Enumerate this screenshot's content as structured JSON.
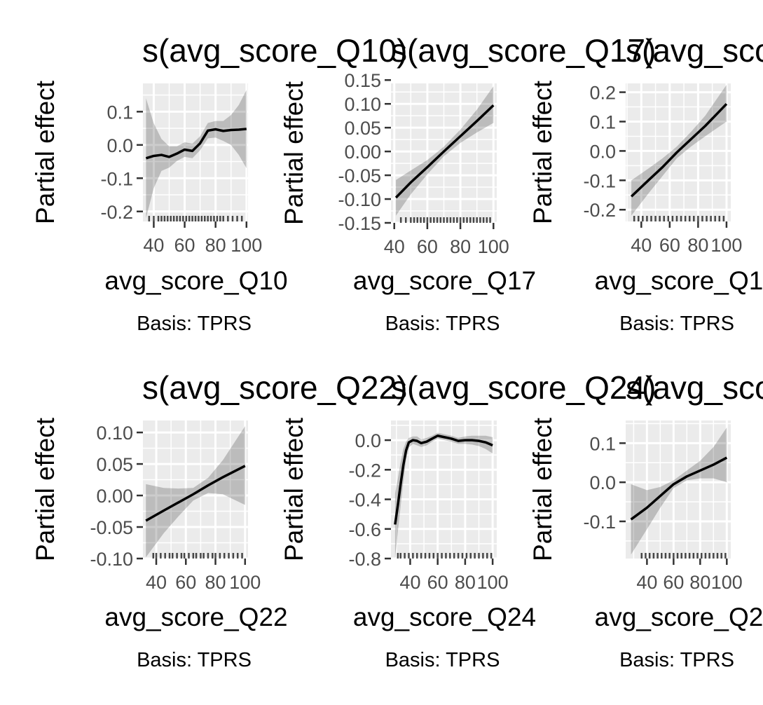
{
  "chart_data": [
    {
      "type": "line",
      "title": "s(avg_score_Q10)",
      "xlabel": "avg_score_Q10",
      "ylabel": "Partial effect",
      "caption": "Basis: TPRS",
      "xlim": [
        33,
        101
      ],
      "ylim": [
        -0.23,
        0.185
      ],
      "x_ticks": [
        40,
        60,
        80,
        100
      ],
      "x_tick_labels": [
        "40",
        "60",
        "80",
        "100"
      ],
      "y_ticks": [
        -0.2,
        -0.1,
        0.0,
        0.1
      ],
      "y_tick_labels": [
        "-0.2",
        "-0.1",
        "0.0",
        "0.1"
      ],
      "grid": true,
      "series": [
        {
          "x": [
            35,
            40,
            45,
            50,
            55,
            60,
            65,
            70,
            75,
            80,
            85,
            90,
            95,
            100
          ],
          "y": [
            -0.04,
            -0.033,
            -0.03,
            -0.036,
            -0.026,
            -0.014,
            -0.018,
            0.005,
            0.043,
            0.047,
            0.042,
            0.045,
            0.046,
            0.048
          ],
          "lower": [
            -0.22,
            -0.13,
            -0.078,
            -0.068,
            -0.048,
            -0.036,
            -0.04,
            -0.016,
            0.02,
            0.022,
            0.012,
            0.0,
            -0.03,
            -0.07
          ],
          "upper": [
            0.14,
            0.065,
            0.018,
            -0.004,
            -0.004,
            0.008,
            0.004,
            0.026,
            0.066,
            0.072,
            0.072,
            0.09,
            0.12,
            0.165
          ]
        }
      ],
      "rug": [
        37,
        40,
        43,
        45,
        47,
        49,
        51,
        53,
        55,
        57,
        59,
        61,
        63,
        65,
        67,
        69,
        71,
        73,
        75,
        77,
        79,
        81,
        83,
        85,
        88,
        91,
        94,
        97
      ]
    },
    {
      "type": "line",
      "title": "s(avg_score_Q17)",
      "xlabel": "avg_score_Q17",
      "ylabel": "Partial effect",
      "caption": "Basis: TPRS",
      "xlim": [
        38,
        102
      ],
      "ylim": [
        -0.15,
        0.143
      ],
      "x_ticks": [
        40,
        60,
        80,
        100
      ],
      "x_tick_labels": [
        "40",
        "60",
        "80",
        "100"
      ],
      "y_ticks": [
        -0.15,
        -0.1,
        -0.05,
        0.0,
        0.05,
        0.1,
        0.15
      ],
      "y_tick_labels": [
        "-0.15",
        "-0.10",
        "-0.05",
        "0.00",
        "0.05",
        "0.10",
        "0.15"
      ],
      "grid": true,
      "series": [
        {
          "x": [
            41,
            50,
            60,
            70,
            80,
            90,
            100
          ],
          "y": [
            -0.097,
            -0.065,
            -0.033,
            0.0,
            0.032,
            0.064,
            0.097
          ],
          "lower": [
            -0.135,
            -0.09,
            -0.048,
            -0.01,
            0.018,
            0.04,
            0.06
          ],
          "upper": [
            -0.06,
            -0.04,
            -0.018,
            0.01,
            0.046,
            0.088,
            0.137
          ]
        }
      ],
      "rug": [
        44,
        47,
        50,
        52,
        54,
        56,
        58,
        60,
        62,
        64,
        66,
        68,
        70,
        72,
        74,
        76,
        78,
        80,
        82,
        84,
        86,
        88,
        90,
        92,
        94,
        96,
        98
      ]
    },
    {
      "type": "line",
      "title": "s(avg_score_Q",
      "xlabel": "avg_score_Q1",
      "ylabel": "Partial effect",
      "caption": "Basis: TPRS",
      "xlim": [
        29,
        103
      ],
      "ylim": [
        -0.24,
        0.23
      ],
      "x_ticks": [
        40,
        60,
        80,
        100
      ],
      "x_tick_labels": [
        "40",
        "60",
        "80",
        "100"
      ],
      "y_ticks": [
        -0.2,
        -0.1,
        0.0,
        0.1,
        0.2
      ],
      "y_tick_labels": [
        "-0.2",
        "-0.1",
        "0.0",
        "0.1",
        "0.2"
      ],
      "grid": true,
      "series": [
        {
          "x": [
            33,
            45,
            55,
            65,
            75,
            85,
            100
          ],
          "y": [
            -0.155,
            -0.1,
            -0.055,
            -0.005,
            0.04,
            0.085,
            0.16
          ],
          "lower": [
            -0.22,
            -0.145,
            -0.085,
            -0.025,
            0.015,
            0.05,
            0.1
          ],
          "upper": [
            -0.1,
            -0.06,
            -0.025,
            0.015,
            0.065,
            0.12,
            0.225
          ]
        }
      ],
      "rug": [
        35,
        38,
        41,
        44,
        47,
        50,
        53,
        56,
        59,
        62,
        65,
        68,
        71,
        74,
        77,
        80,
        83,
        86,
        89,
        92,
        95,
        98
      ]
    },
    {
      "type": "line",
      "title": "s(avg_score_Q22)",
      "xlabel": "avg_score_Q22",
      "ylabel": "Partial effect",
      "caption": "Basis: TPRS",
      "xlim": [
        31,
        102
      ],
      "ylim": [
        -0.1,
        0.119
      ],
      "x_ticks": [
        40,
        60,
        80,
        100
      ],
      "x_tick_labels": [
        "40",
        "60",
        "80",
        "100"
      ],
      "y_ticks": [
        -0.1,
        -0.05,
        0.0,
        0.05,
        0.1
      ],
      "y_tick_labels": [
        "-0.10",
        "-0.05",
        "0.00",
        "0.05",
        "0.10"
      ],
      "grid": true,
      "series": [
        {
          "x": [
            33,
            45,
            55,
            65,
            75,
            85,
            100
          ],
          "y": [
            -0.04,
            -0.024,
            -0.011,
            0.002,
            0.016,
            0.029,
            0.047
          ],
          "lower": [
            -0.098,
            -0.06,
            -0.033,
            -0.008,
            0.004,
            0.002,
            -0.015
          ],
          "upper": [
            0.018,
            0.012,
            0.011,
            0.012,
            0.028,
            0.056,
            0.11
          ]
        }
      ],
      "rug": [
        38,
        40,
        43,
        46,
        49,
        51,
        54,
        57,
        59,
        62,
        65,
        67,
        70,
        72,
        75,
        78,
        80,
        83,
        86,
        89,
        92,
        95,
        98
      ]
    },
    {
      "type": "line",
      "title": "s(avg_score_Q24)",
      "xlabel": "avg_score_Q24",
      "ylabel": "Partial effect",
      "caption": "Basis: TPRS",
      "xlim": [
        26,
        103
      ],
      "ylim": [
        -0.8,
        0.133
      ],
      "x_ticks": [
        40,
        60,
        80,
        100
      ],
      "x_tick_labels": [
        "40",
        "60",
        "80",
        "100"
      ],
      "y_ticks": [
        -0.8,
        -0.6,
        -0.4,
        -0.2,
        0.0
      ],
      "y_tick_labels": [
        "-0.8",
        "-0.6",
        "-0.4",
        "-0.2",
        "0.0"
      ],
      "grid": true,
      "series": [
        {
          "x": [
            29,
            31,
            33,
            35,
            37,
            39,
            42,
            45,
            48,
            52,
            56,
            60,
            65,
            70,
            75,
            80,
            85,
            90,
            95,
            100
          ],
          "y": [
            -0.57,
            -0.44,
            -0.3,
            -0.17,
            -0.07,
            -0.015,
            0.0,
            -0.005,
            -0.02,
            -0.01,
            0.01,
            0.03,
            0.02,
            0.01,
            -0.005,
            0.0,
            0.0,
            -0.005,
            -0.015,
            -0.035
          ],
          "lower": [
            -0.8,
            -0.62,
            -0.45,
            -0.28,
            -0.13,
            -0.05,
            -0.025,
            -0.035,
            -0.045,
            -0.035,
            -0.01,
            0.01,
            0.0,
            -0.01,
            -0.025,
            -0.025,
            -0.03,
            -0.04,
            -0.06,
            -0.09
          ],
          "upper": [
            -0.36,
            -0.26,
            -0.15,
            -0.06,
            -0.01,
            0.015,
            0.025,
            0.025,
            0.005,
            0.015,
            0.03,
            0.05,
            0.04,
            0.03,
            0.015,
            0.025,
            0.03,
            0.03,
            0.03,
            0.02
          ]
        }
      ],
      "rug": [
        31,
        33,
        36,
        39,
        42,
        45,
        48,
        51,
        54,
        57,
        60,
        63,
        66,
        69,
        72,
        75,
        78,
        81,
        84,
        87,
        90,
        93,
        96,
        99
      ]
    },
    {
      "type": "line",
      "title": "s(avg_score_Q",
      "xlabel": "avg_score_Q2",
      "ylabel": "Partial effect",
      "caption": "Basis: TPRS",
      "xlim": [
        24,
        103
      ],
      "ylim": [
        -0.195,
        0.158
      ],
      "x_ticks": [
        40,
        60,
        80,
        100
      ],
      "x_tick_labels": [
        "40",
        "60",
        "80",
        "100"
      ],
      "y_ticks": [
        -0.1,
        0.0,
        0.1
      ],
      "y_tick_labels": [
        "-0.1",
        "0.0",
        "0.1"
      ],
      "grid": true,
      "series": [
        {
          "x": [
            28,
            40,
            50,
            60,
            70,
            80,
            90,
            100
          ],
          "y": [
            -0.095,
            -0.065,
            -0.035,
            -0.005,
            0.015,
            0.03,
            0.045,
            0.063
          ],
          "lower": [
            -0.185,
            -0.12,
            -0.065,
            -0.015,
            0.005,
            0.01,
            0.01,
            0.0
          ],
          "upper": [
            -0.005,
            -0.02,
            -0.012,
            0.005,
            0.03,
            0.055,
            0.09,
            0.14
          ]
        }
      ],
      "rug": [
        36,
        39,
        42,
        45,
        48,
        51,
        54,
        57,
        60,
        63,
        66,
        69,
        72,
        75,
        78,
        81,
        84,
        87,
        90,
        93,
        96,
        99
      ]
    }
  ]
}
